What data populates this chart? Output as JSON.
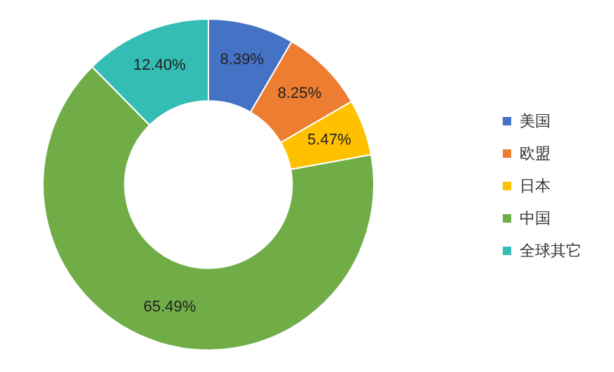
{
  "chart_data": {
    "type": "donut",
    "categories": [
      "美国",
      "欧盟",
      "日本",
      "中国",
      "全球其它"
    ],
    "values": [
      8.39,
      8.25,
      5.47,
      65.49,
      12.4
    ],
    "value_labels": [
      "8.39%",
      "8.25%",
      "5.47%",
      "65.49%",
      "12.40%"
    ],
    "colors": [
      "#4472c4",
      "#ed7d31",
      "#ffc000",
      "#70ad47",
      "#33bdb4"
    ],
    "legend": "right"
  }
}
